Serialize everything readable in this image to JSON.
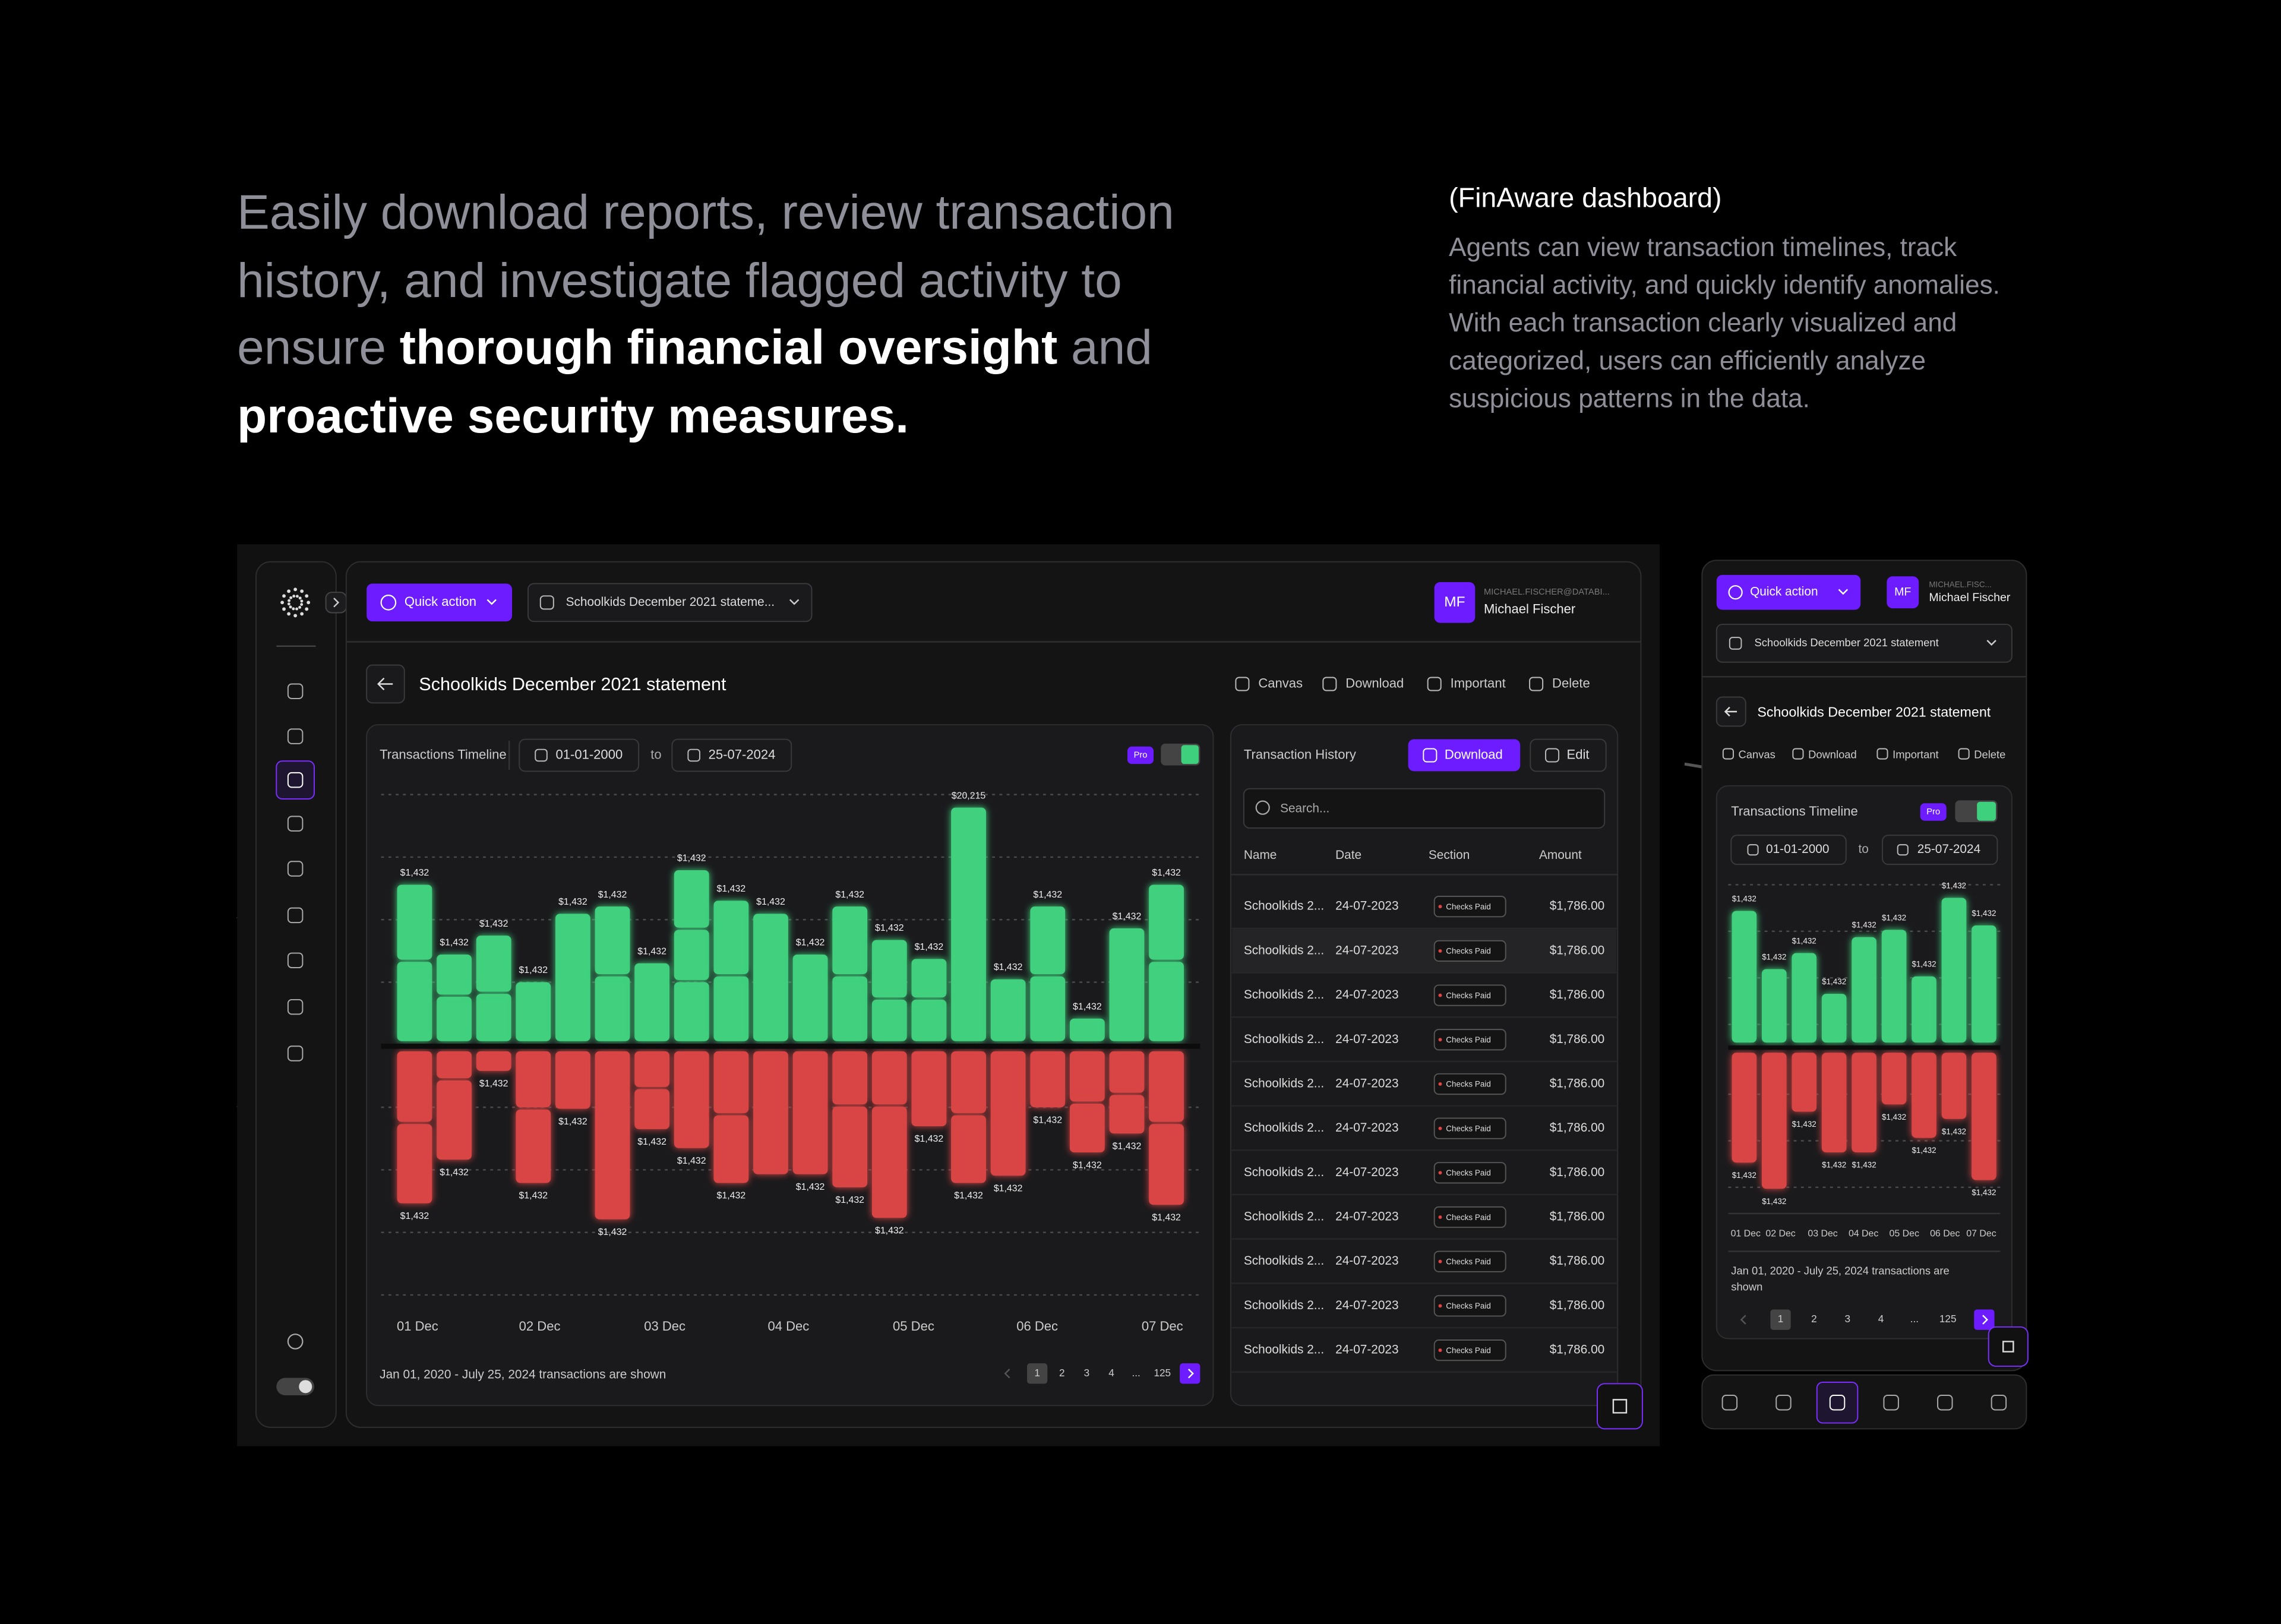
{
  "headline": {
    "parts": [
      "Easily download reports, review transaction",
      "history, and investigate flagged activity to",
      "ensure ",
      "thorough financial oversight",
      " and",
      "proactive security measures."
    ]
  },
  "intro": {
    "title": "(FinAware dashboard)",
    "lines": [
      "Agents can view transaction timelines, track",
      "financial activity, and quickly identify anomalies.",
      "With each transaction clearly visualized and",
      "categorized, users can efficiently analyze",
      "suspicious patterns in the data."
    ]
  },
  "desktop": {
    "quick_action": "Quick action",
    "statement_select": "Schoolkids December 2021 stateme...",
    "avatar": "MF",
    "email": "MICHAEL.FISCHER@DATABI...",
    "user": "Michael Fischer",
    "page_title": "Schoolkids December 2021 statement",
    "actions": [
      "Canvas",
      "Download",
      "Important",
      "Delete"
    ],
    "timeline": {
      "title": "Transactions Timeline",
      "from": "01-01-2000",
      "to_word": "to",
      "to": "25-07-2024",
      "badge": "Pro",
      "categories": [
        "01 Dec",
        "02 Dec",
        "03 Dec",
        "04 Dec",
        "05 Dec",
        "06 Dec",
        "07 Dec"
      ],
      "bars": [
        {
          "up": [
            56,
            53
          ],
          "up_label": "$1,432",
          "down": [
            50,
            56
          ],
          "down_label": "$1,432"
        },
        {
          "up": [
            32,
            29
          ],
          "up_label": "$1,432",
          "down": [
            20,
            56
          ],
          "down_label": "$1,432"
        },
        {
          "up": [
            34,
            40
          ],
          "up_label": "$1,432",
          "down": [
            15
          ],
          "down_label": "$1,432"
        },
        {
          "up": [
            42
          ],
          "up_label": "$1,432",
          "down": [
            40,
            52
          ],
          "down_label": "$1,432"
        },
        {
          "up": [
            89
          ],
          "up_label": "$1,432",
          "down": [
            41
          ],
          "down_label": "$1,432"
        },
        {
          "up": [
            46,
            48
          ],
          "up_label": "$1,432",
          "down": [
            117
          ],
          "down_label": "$1,432"
        },
        {
          "up": [
            55
          ],
          "up_label": "$1,432",
          "down": [
            26,
            29
          ],
          "down_label": "$1,432"
        },
        {
          "up": [
            42,
            36,
            41
          ],
          "up_label": "$1,432",
          "down": [
            68
          ],
          "down_label": "$1,432"
        },
        {
          "up": [
            46,
            52
          ],
          "up_label": "$1,432",
          "down": [
            44,
            48
          ],
          "down_label": "$1,432"
        },
        {
          "up": [
            89
          ],
          "up_label": "$1,432",
          "down": [
            86
          ],
          "down_label": null
        },
        {
          "up": [
            61
          ],
          "up_label": "$1,432",
          "down": [
            86
          ],
          "down_label": "$1,432"
        },
        {
          "up": [
            46,
            48
          ],
          "up_label": "$1,432",
          "down": [
            38,
            57
          ],
          "down_label": "$1,432"
        },
        {
          "up": [
            30,
            41
          ],
          "up_label": "$1,432",
          "down": [
            38,
            78
          ],
          "down_label": "$1,432"
        },
        {
          "up": [
            30,
            28
          ],
          "up_label": "$1,432",
          "down": [
            53
          ],
          "down_label": "$1,432"
        },
        {
          "up": [
            162
          ],
          "up_label": "$20,215",
          "down": [
            44,
            48
          ],
          "down_label": "$1,432"
        },
        {
          "up": [
            44
          ],
          "up_label": "$1,432",
          "down": [
            87
          ],
          "down_label": "$1,432"
        },
        {
          "up": [
            46,
            48
          ],
          "up_label": "$1,432",
          "down": [
            40
          ],
          "down_label": "$1,432"
        },
        {
          "up": [
            17
          ],
          "up_label": "$1,432",
          "down": [
            36,
            35
          ],
          "down_label": "$1,432"
        },
        {
          "up": [
            79
          ],
          "up_label": "$1,432",
          "down": [
            30,
            28
          ],
          "down_label": "$1,432"
        },
        {
          "up": [
            56,
            53
          ],
          "up_label": "$1,432",
          "down": [
            50,
            57
          ],
          "down_label": "$1,432"
        }
      ],
      "footer": "Jan 01, 2020 - July 25, 2024 transactions are shown",
      "pages": [
        "1",
        "2",
        "3",
        "4",
        "...",
        "125"
      ]
    },
    "history": {
      "title": "Transaction History",
      "download": "Download",
      "edit": "Edit",
      "search": "Search...",
      "columns": [
        "Name",
        "Date",
        "Section",
        "Amount"
      ],
      "rows": [
        [
          "Schoolkids 2...",
          "24-07-2023",
          "Checks Paid",
          "$1,786.00"
        ],
        [
          "Schoolkids 2...",
          "24-07-2023",
          "Checks Paid",
          "$1,786.00"
        ],
        [
          "Schoolkids 2...",
          "24-07-2023",
          "Checks Paid",
          "$1,786.00"
        ],
        [
          "Schoolkids 2...",
          "24-07-2023",
          "Checks Paid",
          "$1,786.00"
        ],
        [
          "Schoolkids 2...",
          "24-07-2023",
          "Checks Paid",
          "$1,786.00"
        ],
        [
          "Schoolkids 2...",
          "24-07-2023",
          "Checks Paid",
          "$1,786.00"
        ],
        [
          "Schoolkids 2...",
          "24-07-2023",
          "Checks Paid",
          "$1,786.00"
        ],
        [
          "Schoolkids 2...",
          "24-07-2023",
          "Checks Paid",
          "$1,786.00"
        ],
        [
          "Schoolkids 2...",
          "24-07-2023",
          "Checks Paid",
          "$1,786.00"
        ],
        [
          "Schoolkids 2...",
          "24-07-2023",
          "Checks Paid",
          "$1,786.00"
        ],
        [
          "Schoolkids 2...",
          "24-07-2023",
          "Checks Paid",
          "$1,786.00"
        ]
      ]
    }
  },
  "mobile": {
    "quick_action": "Quick action",
    "avatar": "MF",
    "email": "MICHAEL.FISC...",
    "user": "Michael Fischer",
    "statement_select": "Schoolkids December 2021 statement",
    "page_title": "Schoolkids December 2021 statement",
    "actions": [
      "Canvas",
      "Download",
      "Important",
      "Delete"
    ],
    "timeline": {
      "title": "Transactions Timeline",
      "badge": "Pro",
      "from": "01-01-2000",
      "to_word": "to",
      "to": "25-07-2024",
      "categories": [
        "01 Dec",
        "02 Dec",
        "03 Dec",
        "04 Dec",
        "05 Dec",
        "06 Dec",
        "07 Dec"
      ],
      "bars": [
        {
          "up": [
            92
          ],
          "up_label": "$1,432",
          "down": [
            77
          ],
          "down_label": "$1,432"
        },
        {
          "up": [
            52
          ],
          "up_label": "$1,432",
          "down": [
            95
          ],
          "down_label": "$1,432"
        },
        {
          "up": [
            63
          ],
          "up_label": "$1,432",
          "down": [
            42
          ],
          "down_label": "$1,432"
        },
        {
          "up": [
            35
          ],
          "up_label": "$1,432",
          "down": [
            70
          ],
          "down_label": "$1,432"
        },
        {
          "up": [
            74
          ],
          "up_label": "$1,432",
          "down": [
            70
          ],
          "down_label": "$1,432"
        },
        {
          "up": [
            79
          ],
          "up_label": "$1,432",
          "down": [
            37
          ],
          "down_label": "$1,432"
        },
        {
          "up": [
            47
          ],
          "up_label": "$1,432",
          "down": [
            60
          ],
          "down_label": "$1,432"
        },
        {
          "up": [
            101
          ],
          "up_label": "$1,432",
          "down": [
            47
          ],
          "down_label": "$1,432"
        },
        {
          "up": [
            82
          ],
          "up_label": "$1,432",
          "down": [
            89
          ],
          "down_label": "$1,432"
        }
      ],
      "footer_lines": [
        "Jan 01, 2020 - July 25, 2024 transactions are",
        "shown"
      ],
      "pages": [
        "1",
        "2",
        "3",
        "4",
        "...",
        "125"
      ]
    }
  }
}
